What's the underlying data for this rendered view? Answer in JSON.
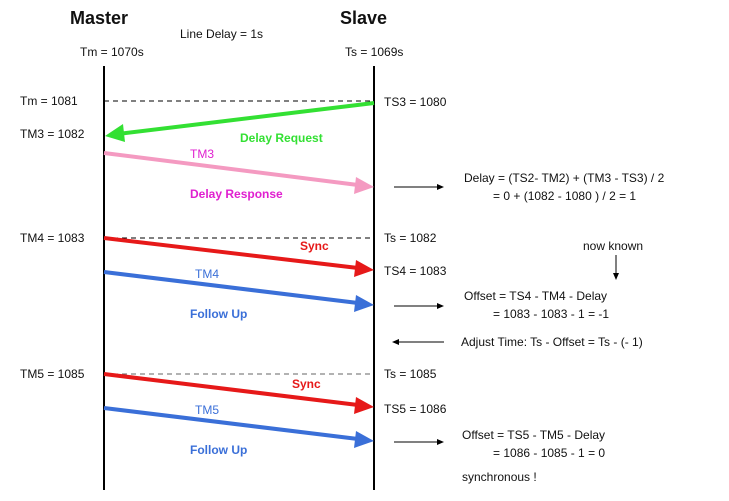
{
  "headers": {
    "master": "Master",
    "slave": "Slave"
  },
  "line_delay": "Line Delay = 1s",
  "initial": {
    "master_time": "Tm = 1070s",
    "slave_time": "Ts = 1069s"
  },
  "left_labels": {
    "tm1081": "Tm = 1081",
    "tm3": "TM3 = 1082",
    "tm4": "TM4 = 1083",
    "tm5": "TM5 = 1085"
  },
  "right_labels": {
    "ts3": "TS3 = 1080",
    "ts1082": "Ts = 1082",
    "ts4": "TS4 = 1083",
    "ts1085": "Ts = 1085",
    "ts5": "TS5 = 1086"
  },
  "messages": {
    "delay_request": {
      "label": "Delay Request",
      "color": "#33e033"
    },
    "delay_response": {
      "tag": "TM3",
      "label": "Delay Response",
      "color": "#f49ac1",
      "text_color": "#e020d0"
    },
    "sync1": {
      "label": "Sync",
      "color": "#e61919"
    },
    "follow_up1": {
      "tag": "TM4",
      "label": "Follow Up",
      "color": "#3a6fd8"
    },
    "sync2": {
      "label": "Sync",
      "color": "#e61919"
    },
    "follow_up2": {
      "tag": "TM5",
      "label": "Follow Up",
      "color": "#3a6fd8"
    }
  },
  "annotations": {
    "delay_line1": "Delay = (TS2- TM2) + (TM3 - TS3) / 2",
    "delay_line2": "= 0 + (1082 - 1080 ) / 2 = 1",
    "now_known": "now known",
    "offset1_line1": "Offset = TS4 - TM4 - Delay",
    "offset1_line2": "= 1083 - 1083 - 1 = -1",
    "adjust": "Adjust Time: Ts - Offset = Ts - (- 1)",
    "offset2_line1": "Offset = TS5 - TM5 - Delay",
    "offset2_line2": "= 1086 - 1085 - 1 = 0",
    "synchronous": "synchronous !"
  }
}
